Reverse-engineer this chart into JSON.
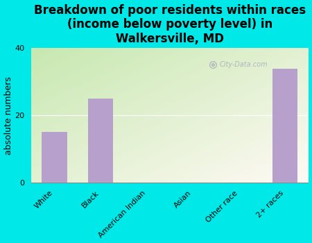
{
  "categories": [
    "White",
    "Black",
    "American Indian",
    "Asian",
    "Other race",
    "2+ races"
  ],
  "values": [
    15,
    25,
    0,
    0,
    0,
    34
  ],
  "bar_color": "#b8a0cc",
  "background_color": "#00e8e8",
  "title": "Breakdown of poor residents within races\n(income below poverty level) in\nWalkersville, MD",
  "ylabel": "absolute numbers",
  "ylim": [
    0,
    40
  ],
  "yticks": [
    0,
    20,
    40
  ],
  "watermark": "City-Data.com",
  "title_fontsize": 12,
  "ylabel_fontsize": 9,
  "tick_fontsize": 8
}
